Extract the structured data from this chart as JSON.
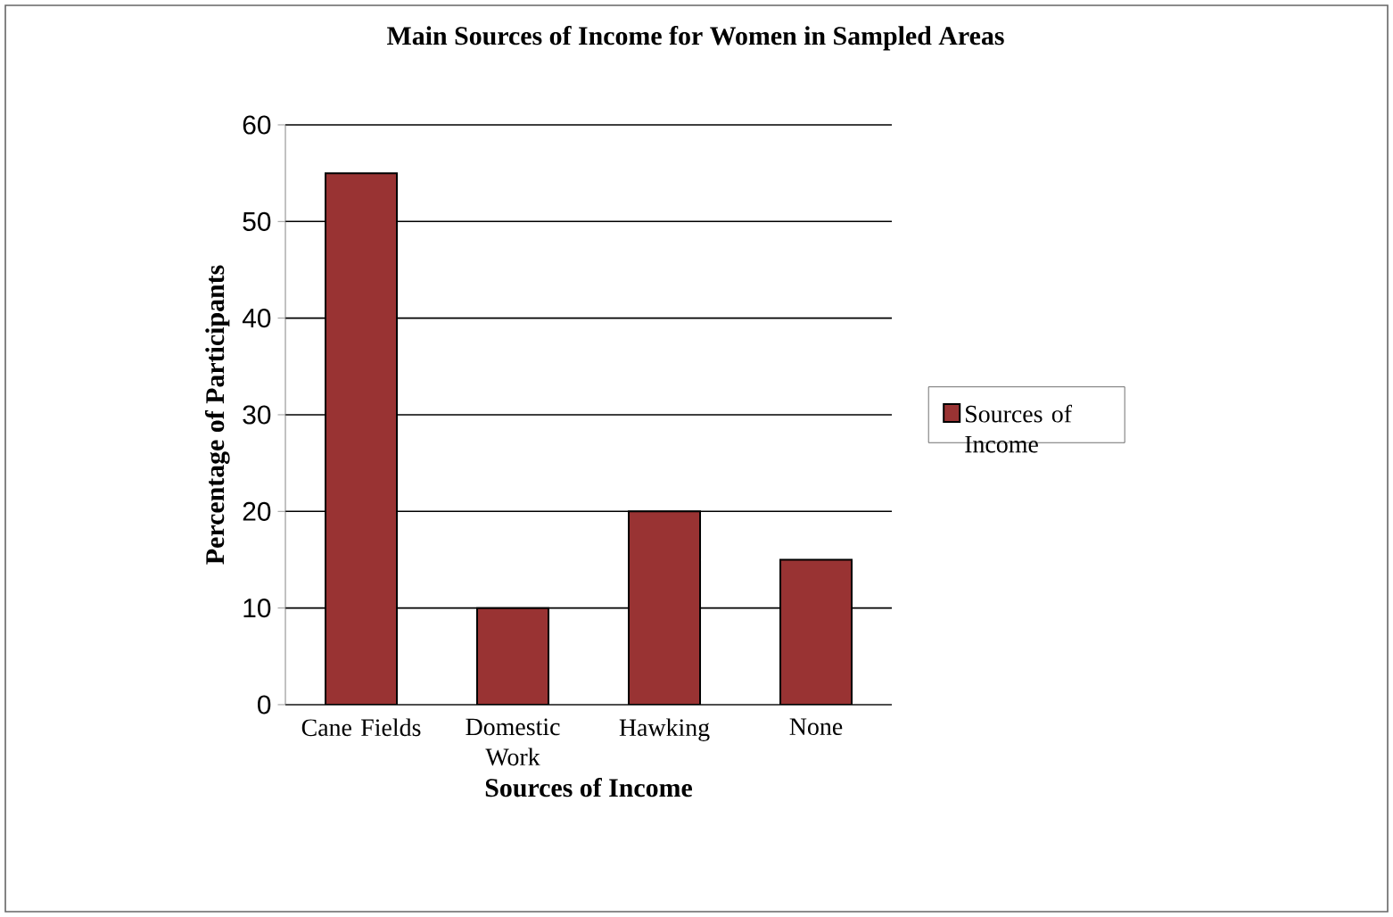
{
  "chart_data": {
    "type": "bar",
    "title": "Main Sources of Income for Women in Sampled Areas",
    "xlabel": "Sources of Income",
    "ylabel": "Percentage of Participants",
    "categories": [
      "Cane Fields",
      "Domestic Work",
      "Hawking",
      "None"
    ],
    "series": [
      {
        "name": "Sources of Income",
        "color": "#993333",
        "values": [
          55,
          10,
          20,
          15
        ]
      }
    ],
    "ylim": [
      0,
      60
    ],
    "yticks": [
      0,
      10,
      20,
      30,
      40,
      50,
      60
    ],
    "grid": "y",
    "legend": "right"
  }
}
